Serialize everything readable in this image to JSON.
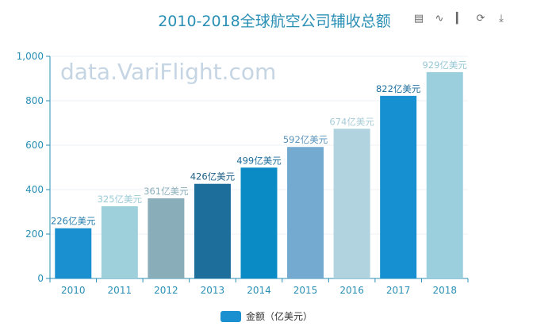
{
  "chart_data": {
    "type": "bar",
    "title": "2010-2018全球航空公司辅收总额",
    "categories": [
      "2010",
      "2011",
      "2012",
      "2013",
      "2014",
      "2015",
      "2016",
      "2017",
      "2018"
    ],
    "values": [
      226,
      325,
      361,
      426,
      499,
      592,
      674,
      822,
      929
    ],
    "label_suffix": "亿美元",
    "colors": [
      "#1a90d0",
      "#9ed0dc",
      "#8aadba",
      "#1e6e9c",
      "#0a8bc6",
      "#74a9d0",
      "#b0d3df",
      "#1690d0",
      "#9ccfdd"
    ],
    "label_colors": [
      "#2a7fae",
      "#9ccbd6",
      "#8aaebb",
      "#1e5f86",
      "#1e6e9c",
      "#5b93bc",
      "#a8ccd8",
      "#1e6e9c",
      "#97c8d6"
    ],
    "yticks": [
      "0",
      "200",
      "400",
      "600",
      "800",
      "1,000"
    ],
    "ytick_values": [
      0,
      200,
      400,
      600,
      800,
      1000
    ],
    "ylim": [
      0,
      1000
    ],
    "legend": {
      "label": "金额（亿美元）",
      "color": "#1a90d0",
      "placement": "bottom"
    },
    "grid": true,
    "axis_color": "#2a8fb5"
  },
  "watermark": "data.VariFlight.com",
  "toolbox": [
    "data-view-icon",
    "line-chart-icon",
    "bar-chart-icon",
    "restore-icon",
    "download-icon"
  ]
}
